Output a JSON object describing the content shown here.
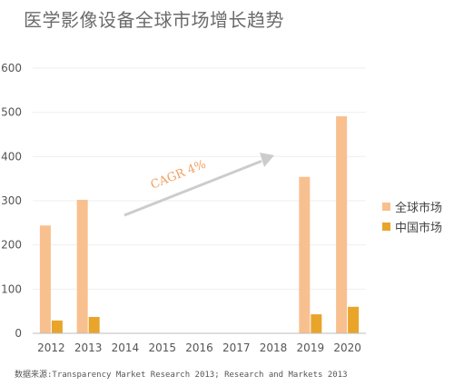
{
  "chart_data": {
    "type": "bar",
    "title": "医学影像设备全球市场增长趋势",
    "categories": [
      "2012",
      "2013",
      "2014",
      "2015",
      "2016",
      "2017",
      "2018",
      "2019",
      "2020"
    ],
    "series": [
      {
        "name": "全球市场",
        "values": [
          244,
          302,
          null,
          null,
          null,
          null,
          null,
          354,
          491
        ],
        "color": "#F8C08E"
      },
      {
        "name": "中国市场",
        "values": [
          29,
          37,
          null,
          null,
          null,
          null,
          null,
          43,
          60
        ],
        "color": "#E9A42A"
      }
    ],
    "ylim": [
      0,
      600
    ],
    "yticks": [
      0,
      100,
      200,
      300,
      400,
      500,
      600
    ],
    "grid": true,
    "legend_position": "right",
    "annotation": {
      "text": "CAGR 4%",
      "color": "#F0A060",
      "arrow_color": "#CCCCCC"
    },
    "source": "数据来源:Transparency Market Research 2013; Research and Markets 2013"
  }
}
